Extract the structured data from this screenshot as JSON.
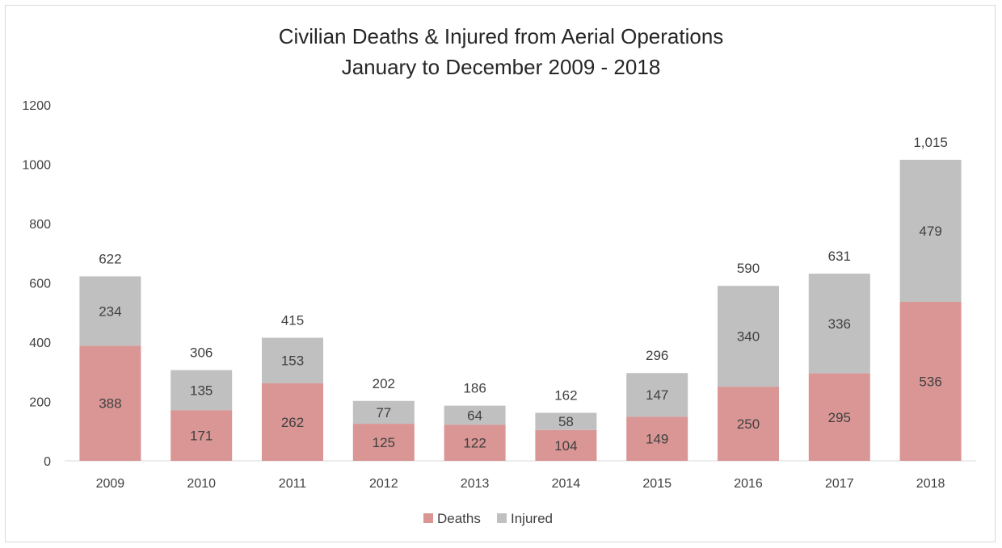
{
  "chart_data": {
    "type": "bar",
    "stacked": true,
    "title": "Civilian Deaths & Injured from Aerial Operations",
    "subtitle": "January to December  2009 - 2018",
    "categories": [
      "2009",
      "2010",
      "2011",
      "2012",
      "2013",
      "2014",
      "2015",
      "2016",
      "2017",
      "2018"
    ],
    "series": [
      {
        "name": "Deaths",
        "color": "#d99694",
        "values": [
          388,
          171,
          262,
          125,
          122,
          104,
          149,
          250,
          295,
          536
        ]
      },
      {
        "name": "Injured",
        "color": "#c0c0c0",
        "values": [
          234,
          135,
          153,
          77,
          64,
          58,
          147,
          340,
          336,
          479
        ]
      }
    ],
    "totals": [
      "622",
      "306",
      "415",
      "202",
      "186",
      "162",
      "296",
      "590",
      "631",
      "1,015"
    ],
    "ylim": [
      0,
      1200
    ],
    "yticks": [
      "0",
      "200",
      "400",
      "600",
      "800",
      "1000",
      "1200"
    ],
    "grid": false,
    "legend_position": "bottom"
  }
}
